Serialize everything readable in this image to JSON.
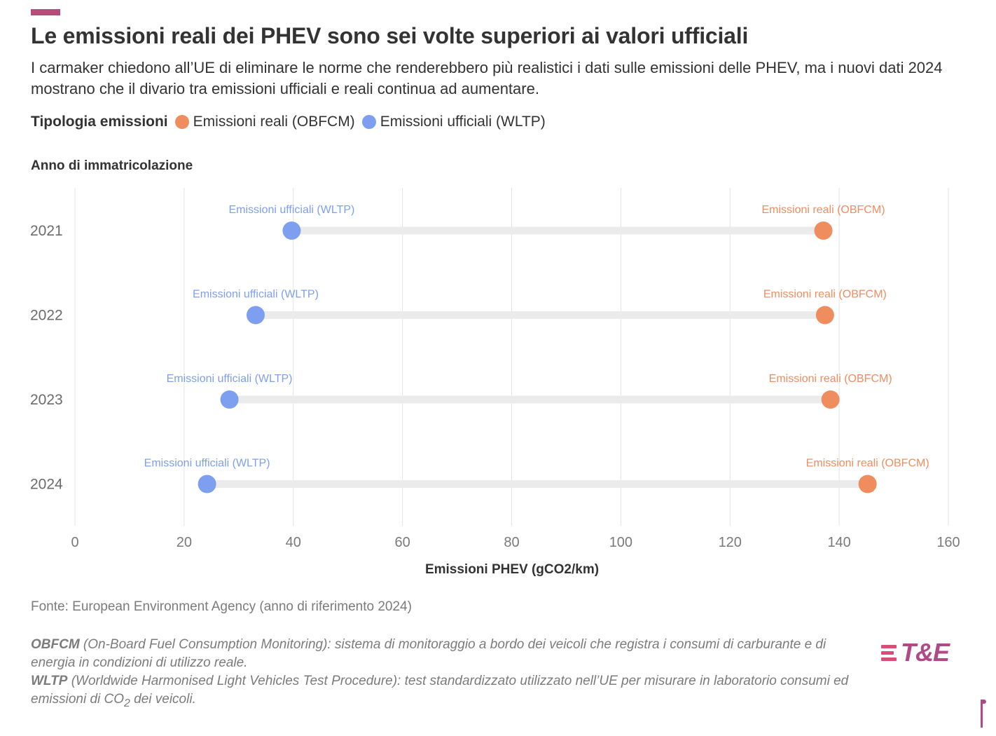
{
  "colors": {
    "accent": "#b94a7a",
    "real": "#f08d5f",
    "official": "#7e9ff0",
    "track": "#ebebeb",
    "grid": "#e3e3e3",
    "logo_start": "#d74f77",
    "logo_end": "#b04a87"
  },
  "header": {
    "title": "Le emissioni reali dei PHEV sono sei volte superiori ai valori ufficiali",
    "subtitle": "I carmaker chiedono all’UE di eliminare le norme che renderebbero più realistici i dati sulle emissioni delle PHEV, ma i nuovi dati 2024 mostrano che il divario tra emissioni ufficiali e reali continua ad aumentare."
  },
  "legend": {
    "title": "Tipologia emissioni",
    "real_label": "Emissioni reali (OBFCM)",
    "official_label": "Emissioni ufficiali (WLTP)"
  },
  "chart_data": {
    "type": "dumbbell",
    "y_axis_title": "Anno di immatricolazione",
    "xlabel": "Emissioni PHEV (gCO2/km)",
    "xlim": [
      0,
      160
    ],
    "x_ticks": [
      0,
      20,
      40,
      60,
      80,
      100,
      120,
      140,
      160
    ],
    "grid": true,
    "categories": [
      "2021",
      "2022",
      "2023",
      "2024"
    ],
    "series": [
      {
        "name": "Emissioni ufficiali (WLTP)",
        "key": "official",
        "values": [
          39.7,
          33.1,
          28.3,
          24.2
        ]
      },
      {
        "name": "Emissioni reali (OBFCM)",
        "key": "real",
        "values": [
          137.1,
          137.4,
          138.4,
          145.2
        ]
      }
    ],
    "point_labels": {
      "official": "Emissioni ufficiali (WLTP)",
      "real": "Emissioni reali (OBFCM)"
    }
  },
  "footer": {
    "source": "Fonte: European Environment Agency (anno di riferimento 2024)",
    "note1_term": "OBFCM",
    "note1_text": " (On-Board Fuel Consumption Monitoring): sistema di monitoraggio a bordo dei veicoli che registra i consumi di carburante e di energia in condizioni di utilizzo reale.",
    "note2_term": "WLTP",
    "note2_text_a": " (Worldwide Harmonised Light Vehicles Test Procedure): test standardizzato utilizzato nell’UE per misurare in laboratorio consumi ed emissioni di CO",
    "note2_sub": "2",
    "note2_text_b": " dei veicoli.",
    "logo_text": "T&E"
  }
}
